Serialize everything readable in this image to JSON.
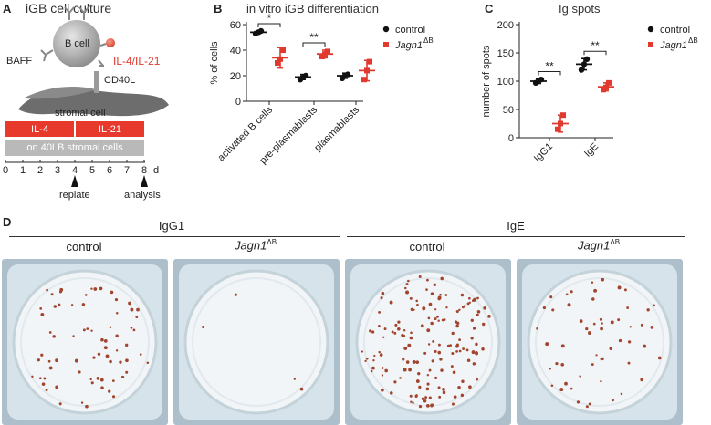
{
  "panels": {
    "a": {
      "letter": "A",
      "title": "iGB cell culture",
      "bcell": "B cell",
      "baff": "BAFF",
      "il": "IL-4/IL-21",
      "cd40l": "CD40L",
      "stromal": "stromal cell",
      "il4": "IL-4",
      "il21": "IL-21",
      "substrate": "on 40LB stromal cells",
      "ticks": [
        "0",
        "1",
        "2",
        "3",
        "4",
        "5",
        "6",
        "7",
        "8"
      ],
      "unit": "d",
      "replate": "replate",
      "analysis": "analysis"
    },
    "b": {
      "letter": "B",
      "title": "in vitro iGB differentiation"
    },
    "c": {
      "letter": "C",
      "title": "Ig spots"
    },
    "d": {
      "letter": "D",
      "group1": "IgG1",
      "group2": "IgE",
      "well_labels": [
        "control",
        "Jagn1",
        "control",
        "Jagn1"
      ],
      "sup": "ΔB"
    }
  },
  "colors": {
    "control": "#111111",
    "knockout": "#e03a2e",
    "box_red": "#e8392d",
    "box_gray": "#b9b9b9"
  },
  "chart_data": [
    {
      "type": "scatter",
      "title": "in vitro iGB differentiation",
      "ylabel": "% of cells",
      "ylim": [
        0,
        60
      ],
      "yticks": [
        "0",
        "20",
        "40",
        "60"
      ],
      "categories": [
        "activated B cells",
        "pre-plasmablasts",
        "plasmablasts"
      ],
      "legend": {
        "position": "top-right",
        "items": [
          "control",
          "Jagn1"
        ],
        "sup": "ΔB"
      },
      "series": [
        {
          "name": "control",
          "mean": [
            54,
            19,
            20
          ],
          "sd": [
            1,
            2,
            2
          ],
          "points": [
            [
              53,
              54,
              55
            ],
            [
              17,
              19,
              20
            ],
            [
              18,
              20,
              21
            ]
          ]
        },
        {
          "name": "Jagn1ΔB",
          "mean": [
            34,
            37,
            24
          ],
          "sd": [
            8,
            3,
            8
          ],
          "points": [
            [
              30,
              33,
              40
            ],
            [
              35,
              37,
              39
            ],
            [
              17,
              24,
              31
            ]
          ]
        }
      ],
      "significance": [
        {
          "category": 0,
          "label": "*"
        },
        {
          "category": 1,
          "label": "**"
        }
      ]
    },
    {
      "type": "scatter",
      "title": "Ig spots",
      "ylabel": "number of spots",
      "ylim": [
        0,
        200
      ],
      "yticks": [
        "0",
        "50",
        "100",
        "150",
        "200"
      ],
      "categories": [
        "IgG1",
        "IgE"
      ],
      "legend": {
        "position": "top-right",
        "items": [
          "control",
          "Jagn1"
        ],
        "sup": "ΔB"
      },
      "series": [
        {
          "name": "control",
          "mean": [
            100,
            130
          ],
          "sd": [
            4,
            10
          ],
          "points": [
            [
              97,
              100,
              103
            ],
            [
              120,
              130,
              139
            ]
          ]
        },
        {
          "name": "Jagn1ΔB",
          "mean": [
            25,
            90
          ],
          "sd": [
            15,
            7
          ],
          "points": [
            [
              15,
              25,
              40
            ],
            [
              85,
              89,
              97
            ]
          ]
        }
      ],
      "significance": [
        {
          "category": 0,
          "label": "**"
        },
        {
          "category": 1,
          "label": "**"
        }
      ]
    }
  ]
}
